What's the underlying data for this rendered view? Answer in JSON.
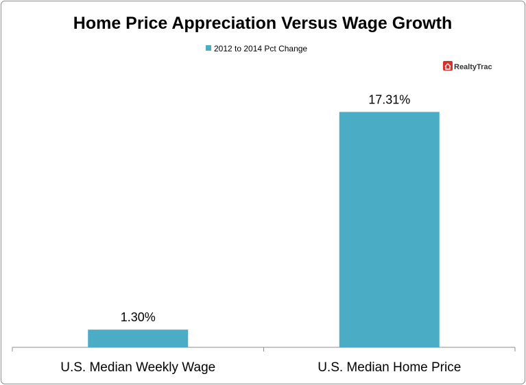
{
  "chart_data": {
    "type": "bar",
    "title": "Home Price Appreciation Versus Wage Growth",
    "categories": [
      "U.S. Median Weekly Wage",
      "U.S. Median Home Price"
    ],
    "series": [
      {
        "name": "2012 to 2014 Pct Change",
        "values": [
          1.3,
          17.31
        ],
        "data_labels": [
          "1.30%",
          "17.31%"
        ],
        "color": "#4bacc6"
      }
    ],
    "xlabel": "",
    "ylabel": "",
    "ylim": [
      0,
      20
    ],
    "grid": false,
    "y_axis_visible": false,
    "legend_placement": "top"
  },
  "logo": {
    "text": "RealtyTrac",
    "icon": "house-icon",
    "color": "#d9302c"
  }
}
